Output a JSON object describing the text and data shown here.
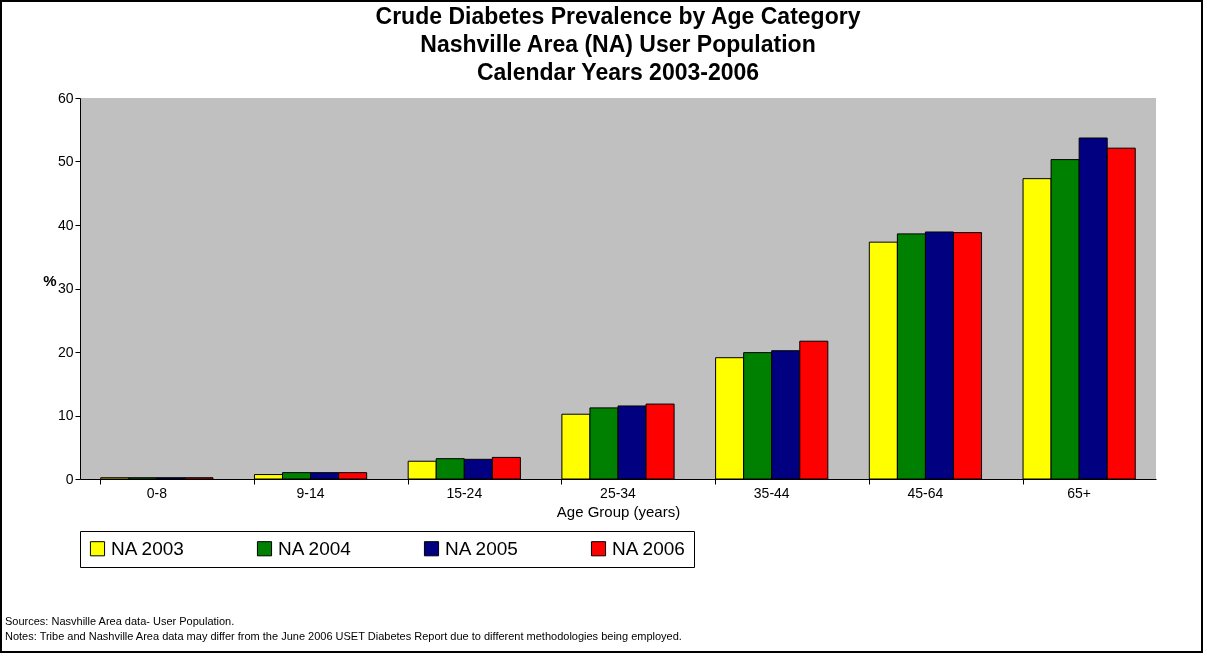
{
  "chart_data": {
    "type": "bar",
    "title": "Crude Diabetes Prevalence by Age Category\nNashville Area (NA) User Population\nCalendar Years 2003-2006",
    "xlabel": "Age Group (years)",
    "ylabel": "%",
    "categories": [
      "0-8",
      "9-14",
      "15-24",
      "25-34",
      "35-44",
      "45-64",
      "65+"
    ],
    "series": [
      {
        "name": "NA 2003",
        "color": "#ffff00",
        "values": [
          0.2,
          0.7,
          2.8,
          10.2,
          19.1,
          37.3,
          47.3
        ]
      },
      {
        "name": "NA 2004",
        "color": "#008000",
        "values": [
          0.2,
          1.0,
          3.2,
          11.2,
          19.9,
          38.6,
          50.3
        ]
      },
      {
        "name": "NA 2005",
        "color": "#000080",
        "values": [
          0.2,
          1.0,
          3.1,
          11.5,
          20.2,
          38.9,
          53.7
        ]
      },
      {
        "name": "NA 2006",
        "color": "#ff0000",
        "values": [
          0.2,
          1.0,
          3.4,
          11.8,
          21.7,
          38.8,
          52.1
        ]
      }
    ],
    "ylim": [
      0,
      60
    ],
    "yticks": [
      0,
      10,
      20,
      30,
      40,
      50,
      60
    ],
    "grid": false,
    "legend": "bottom",
    "annotations": [
      "Sources:  Nasvhille Area data- User Population.",
      "Notes: Tribe and Nashville Area data may differ from the June 2006 USET Diabetes Report due to different methodologies being employed."
    ]
  }
}
